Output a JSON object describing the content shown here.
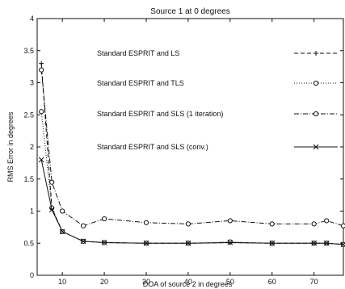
{
  "chart_data": {
    "type": "line",
    "title": "Source 1 at 0 degrees",
    "xlabel": "DOA of source 2 in  degrees",
    "ylabel": "RMS Error in degrees",
    "xlim": [
      4,
      77
    ],
    "ylim": [
      0,
      4
    ],
    "xticks": [
      10,
      20,
      30,
      40,
      50,
      60,
      70
    ],
    "yticks": [
      0,
      0.5,
      1,
      1.5,
      2,
      2.5,
      3,
      3.5,
      4
    ],
    "ytick_labels": [
      "0",
      "0.5",
      "1",
      "1.5",
      "2",
      "2.5",
      "3",
      "3.5",
      "4"
    ],
    "grid": false,
    "legend_position": "right",
    "series": [
      {
        "name": "Standard ESPRIT and LS",
        "marker": "plus",
        "dash": "5,3",
        "x": [
          5,
          7.5,
          10,
          15,
          20,
          30,
          40,
          50,
          60,
          70,
          73,
          77
        ],
        "y": [
          3.3,
          1.05,
          0.68,
          0.53,
          0.51,
          0.5,
          0.5,
          0.51,
          0.5,
          0.5,
          0.5,
          0.48
        ]
      },
      {
        "name": "Standard ESPRIT and TLS",
        "marker": "circle",
        "dash": "1,2",
        "x": [
          5,
          7.5,
          10,
          15,
          20,
          30,
          40,
          50,
          60,
          70,
          73,
          77
        ],
        "y": [
          2.55,
          1.05,
          0.68,
          0.53,
          0.51,
          0.5,
          0.5,
          0.52,
          0.5,
          0.5,
          0.5,
          0.48
        ]
      },
      {
        "name": "Standard ESPRIT and SLS (1 iteration)",
        "marker": "circle",
        "dash": "6,2,1,2",
        "x": [
          5,
          7.5,
          10,
          15,
          20,
          30,
          40,
          50,
          60,
          70,
          73,
          77
        ],
        "y": [
          3.2,
          1.45,
          1.0,
          0.77,
          0.88,
          0.82,
          0.8,
          0.85,
          0.8,
          0.8,
          0.85,
          0.77
        ]
      },
      {
        "name": "Standard ESPRIT and SLS (conv.)",
        "marker": "x",
        "dash": "",
        "x": [
          5,
          7.5,
          10,
          15,
          20,
          30,
          40,
          50,
          60,
          70,
          73,
          77
        ],
        "y": [
          1.8,
          1.02,
          0.68,
          0.53,
          0.51,
          0.5,
          0.5,
          0.51,
          0.5,
          0.5,
          0.5,
          0.48
        ]
      }
    ]
  }
}
